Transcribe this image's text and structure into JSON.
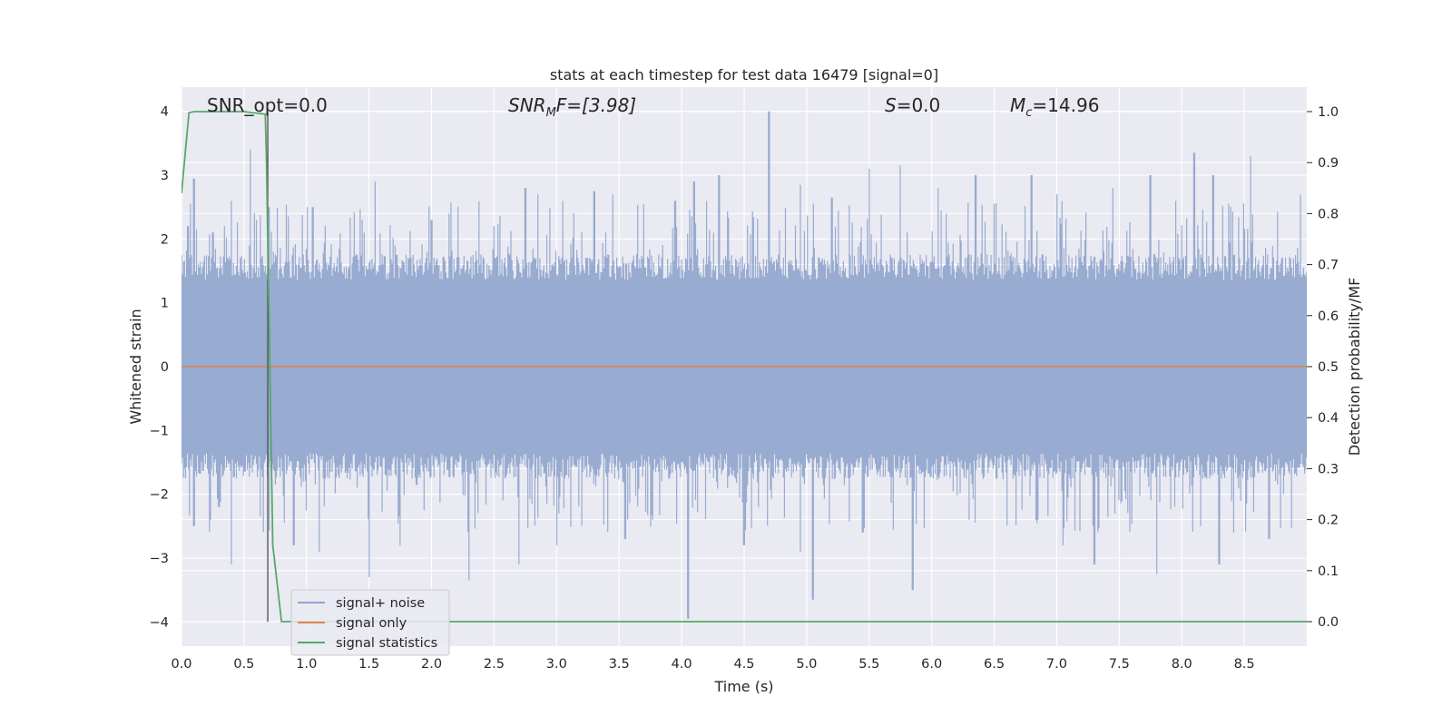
{
  "chart_data": {
    "type": "line",
    "title": "stats at each timestep for test data 16479 [signal=0]",
    "xlabel": "Time (s)",
    "ylabel_left": "Whitened strain",
    "ylabel_right": "Detection probability/MF",
    "xlim": [
      0,
      9.0
    ],
    "ylim_left": [
      -4.38,
      4.38
    ],
    "ylim_right": [
      -0.048,
      1.048
    ],
    "x_ticks": [
      "0.0",
      "0.5",
      "1.0",
      "1.5",
      "2.0",
      "2.5",
      "3.0",
      "3.5",
      "4.0",
      "4.5",
      "5.0",
      "5.5",
      "6.0",
      "6.5",
      "7.0",
      "7.5",
      "8.0",
      "8.5"
    ],
    "y_ticks_left": [
      "−4",
      "−3",
      "−2",
      "−1",
      "0",
      "1",
      "2",
      "3",
      "4"
    ],
    "y_ticks_right": [
      "0.0",
      "0.1",
      "0.2",
      "0.3",
      "0.4",
      "0.5",
      "0.6",
      "0.7",
      "0.8",
      "0.9",
      "1.0"
    ],
    "grid": true,
    "annotations": {
      "snr_opt": "SNR_opt=0.0",
      "snr_mf_main": "SNR",
      "snr_mf_sub": "M",
      "snr_mf_rest": "F=[3.98]",
      "s_label": "S",
      "s_value": "=0.0",
      "mc_main": "M",
      "mc_sub": "c",
      "mc_value": "=14.96"
    },
    "legend": {
      "placement": "lower-left",
      "entries": [
        "signal+ noise",
        "signal only",
        "signal statistics"
      ]
    },
    "colors": {
      "noise": "#8fa4cc",
      "signal": "#dd8452",
      "stat": "#55a868",
      "marker": "#4d4d4d",
      "plot_bg": "#eaeaf2",
      "grid": "#ffffff"
    },
    "series": [
      {
        "name": "signal+ noise",
        "axis": "left",
        "kind": "noise",
        "envelope_upper": 1.6,
        "envelope_lower": -1.6,
        "peaks_upper": [
          [
            0.05,
            2.2
          ],
          [
            0.1,
            2.95
          ],
          [
            0.25,
            2.1
          ],
          [
            0.4,
            2.6
          ],
          [
            0.55,
            3.4
          ],
          [
            0.6,
            2.3
          ],
          [
            0.7,
            2.5
          ],
          [
            1.05,
            2.5
          ],
          [
            1.55,
            2.9
          ],
          [
            2.0,
            2.3
          ],
          [
            2.5,
            2.2
          ],
          [
            2.75,
            2.8
          ],
          [
            2.85,
            2.7
          ],
          [
            3.05,
            2.6
          ],
          [
            3.3,
            2.75
          ],
          [
            3.45,
            2.7
          ],
          [
            3.95,
            2.6
          ],
          [
            4.1,
            2.9
          ],
          [
            4.2,
            2.6
          ],
          [
            4.3,
            3.0
          ],
          [
            4.7,
            4.0
          ],
          [
            4.95,
            2.85
          ],
          [
            5.2,
            2.65
          ],
          [
            5.5,
            3.1
          ],
          [
            5.75,
            3.15
          ],
          [
            6.05,
            2.8
          ],
          [
            6.35,
            3.0
          ],
          [
            6.8,
            3.0
          ],
          [
            7.0,
            2.7
          ],
          [
            7.45,
            2.8
          ],
          [
            7.75,
            3.0
          ],
          [
            7.95,
            2.6
          ],
          [
            8.1,
            3.35
          ],
          [
            8.25,
            3.0
          ],
          [
            8.55,
            3.3
          ],
          [
            8.95,
            2.7
          ]
        ],
        "peaks_lower": [
          [
            0.1,
            -2.5
          ],
          [
            0.3,
            -2.2
          ],
          [
            0.4,
            -3.1
          ],
          [
            0.9,
            -2.8
          ],
          [
            1.1,
            -2.9
          ],
          [
            1.5,
            -3.3
          ],
          [
            1.75,
            -2.8
          ],
          [
            2.3,
            -3.35
          ],
          [
            2.7,
            -3.1
          ],
          [
            3.0,
            -2.8
          ],
          [
            3.55,
            -2.7
          ],
          [
            4.05,
            -3.95
          ],
          [
            4.5,
            -2.8
          ],
          [
            4.95,
            -2.9
          ],
          [
            5.05,
            -3.65
          ],
          [
            5.45,
            -2.6
          ],
          [
            5.85,
            -3.5
          ],
          [
            6.3,
            -2.4
          ],
          [
            6.85,
            -2.4
          ],
          [
            7.05,
            -2.8
          ],
          [
            7.3,
            -3.1
          ],
          [
            7.8,
            -3.25
          ],
          [
            8.15,
            -2.5
          ],
          [
            8.3,
            -3.1
          ],
          [
            8.7,
            -2.7
          ]
        ]
      },
      {
        "name": "signal only",
        "axis": "left",
        "x": [
          0.0,
          9.0
        ],
        "y": [
          0.0,
          0.0
        ]
      },
      {
        "name": "signal statistics",
        "axis": "right",
        "x": [
          0.0,
          0.06,
          0.1,
          0.5,
          0.67,
          0.68,
          0.7,
          0.73,
          0.8,
          9.0
        ],
        "y": [
          0.84,
          0.998,
          1.0,
          1.0,
          0.995,
          0.9,
          0.6,
          0.15,
          0.0,
          0.0
        ]
      }
    ],
    "marker_line": {
      "x": 0.69,
      "y_from": -4.0,
      "y_to": 4.0
    }
  }
}
